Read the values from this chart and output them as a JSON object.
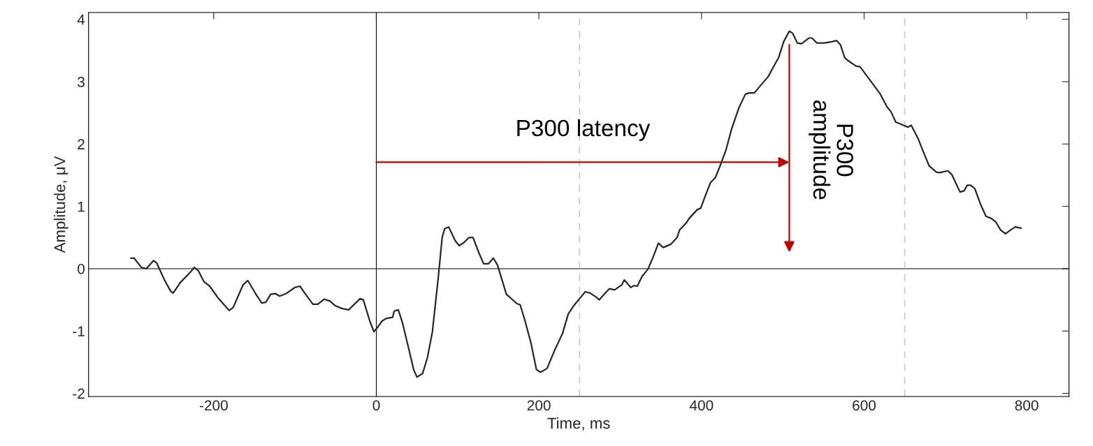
{
  "chart_data": {
    "type": "line",
    "xlabel": "Time, ms",
    "ylabel": "Amplitude, μV",
    "xlim": [
      -354,
      852
    ],
    "ylim": [
      -2.05,
      4.11
    ],
    "xticks": [
      -200,
      0,
      200,
      400,
      600,
      800
    ],
    "yticks": [
      -2,
      -1,
      0,
      1,
      2,
      3,
      4
    ],
    "grid": false,
    "legend": false,
    "series": [
      {
        "color": "#262626",
        "x": [
          -302,
          -298,
          -289,
          -283,
          -274,
          -270,
          -261,
          -253,
          -250,
          -244,
          -241,
          -229,
          -224,
          -219,
          -212,
          -205,
          -194,
          -181,
          -176,
          -164,
          -158,
          -149,
          -141,
          -136,
          -130,
          -124,
          -119,
          -111,
          -100,
          -94,
          -88,
          -78,
          -72,
          -64,
          -57,
          -51,
          -42,
          -34,
          -27,
          -20,
          -16,
          -8,
          -3,
          1,
          7,
          12,
          20,
          22,
          27,
          32,
          40,
          46,
          50,
          57,
          63,
          69,
          76,
          81,
          84,
          89,
          97,
          102,
          107,
          114,
          119,
          126,
          132,
          138,
          144,
          149,
          160,
          173,
          177,
          183,
          190,
          197,
          202,
          210,
          220,
          229,
          236,
          243,
          250,
          257,
          263,
          272,
          274,
          283,
          287,
          293,
          302,
          305,
          313,
          317,
          321,
          327,
          334,
          340,
          347,
          353,
          362,
          370,
          373,
          381,
          385,
          395,
          399,
          405,
          411,
          417,
          422,
          430,
          437,
          446,
          454,
          459,
          465,
          474,
          482,
          489,
          495,
          501,
          508,
          512,
          518,
          523,
          532,
          536,
          542,
          551,
          560,
          566,
          571,
          576,
          579,
          590,
          595,
          607,
          620,
          628,
          633,
          639,
          645,
          654,
          658,
          667,
          673,
          680,
          689,
          693,
          703,
          708,
          714,
          718,
          723,
          727,
          731,
          736,
          744,
          750,
          756,
          762,
          768,
          774,
          780,
          786,
          793
        ],
        "values": [
          0.17,
          0.17,
          0.02,
          0.0,
          0.13,
          0.09,
          -0.17,
          -0.36,
          -0.39,
          -0.28,
          -0.22,
          -0.06,
          0.02,
          -0.03,
          -0.21,
          -0.28,
          -0.48,
          -0.67,
          -0.62,
          -0.26,
          -0.19,
          -0.39,
          -0.55,
          -0.54,
          -0.41,
          -0.4,
          -0.44,
          -0.4,
          -0.3,
          -0.28,
          -0.39,
          -0.57,
          -0.57,
          -0.49,
          -0.52,
          -0.59,
          -0.64,
          -0.66,
          -0.57,
          -0.48,
          -0.5,
          -0.84,
          -1.01,
          -0.95,
          -0.84,
          -0.8,
          -0.78,
          -0.68,
          -0.66,
          -0.86,
          -1.29,
          -1.62,
          -1.74,
          -1.68,
          -1.42,
          -1.01,
          -0.17,
          0.5,
          0.64,
          0.67,
          0.45,
          0.37,
          0.41,
          0.5,
          0.5,
          0.26,
          0.08,
          0.08,
          0.17,
          0.06,
          -0.41,
          -0.56,
          -0.58,
          -0.84,
          -1.18,
          -1.62,
          -1.66,
          -1.6,
          -1.29,
          -1.04,
          -0.73,
          -0.59,
          -0.48,
          -0.37,
          -0.39,
          -0.47,
          -0.5,
          -0.37,
          -0.32,
          -0.34,
          -0.26,
          -0.18,
          -0.3,
          -0.27,
          -0.28,
          -0.12,
          -0.01,
          0.17,
          0.41,
          0.34,
          0.39,
          0.5,
          0.62,
          0.73,
          0.81,
          0.95,
          0.97,
          1.18,
          1.38,
          1.46,
          1.62,
          1.9,
          2.24,
          2.58,
          2.8,
          2.82,
          2.82,
          2.96,
          3.08,
          3.25,
          3.39,
          3.64,
          3.81,
          3.78,
          3.62,
          3.61,
          3.7,
          3.7,
          3.62,
          3.62,
          3.64,
          3.66,
          3.59,
          3.39,
          3.35,
          3.25,
          3.24,
          3.03,
          2.8,
          2.6,
          2.52,
          2.35,
          2.32,
          2.27,
          2.3,
          2.07,
          1.87,
          1.65,
          1.55,
          1.54,
          1.57,
          1.51,
          1.34,
          1.23,
          1.25,
          1.34,
          1.34,
          1.29,
          1.01,
          0.84,
          0.81,
          0.75,
          0.62,
          0.56,
          0.62,
          0.67,
          0.65
        ]
      }
    ],
    "ref_lines": [
      {
        "axis": "x",
        "value": 0,
        "color": "#000000",
        "line_style": "solid"
      },
      {
        "axis": "y",
        "value": 0,
        "color": "#000000",
        "line_style": "solid"
      },
      {
        "axis": "x",
        "value": 250,
        "color": "#c8c8c8",
        "line_style": "dashed"
      },
      {
        "axis": "x",
        "value": 650,
        "color": "#c8c8c8",
        "line_style": "dashed"
      }
    ],
    "annotations": [
      "P300 latency",
      "P300\namplitude"
    ]
  }
}
